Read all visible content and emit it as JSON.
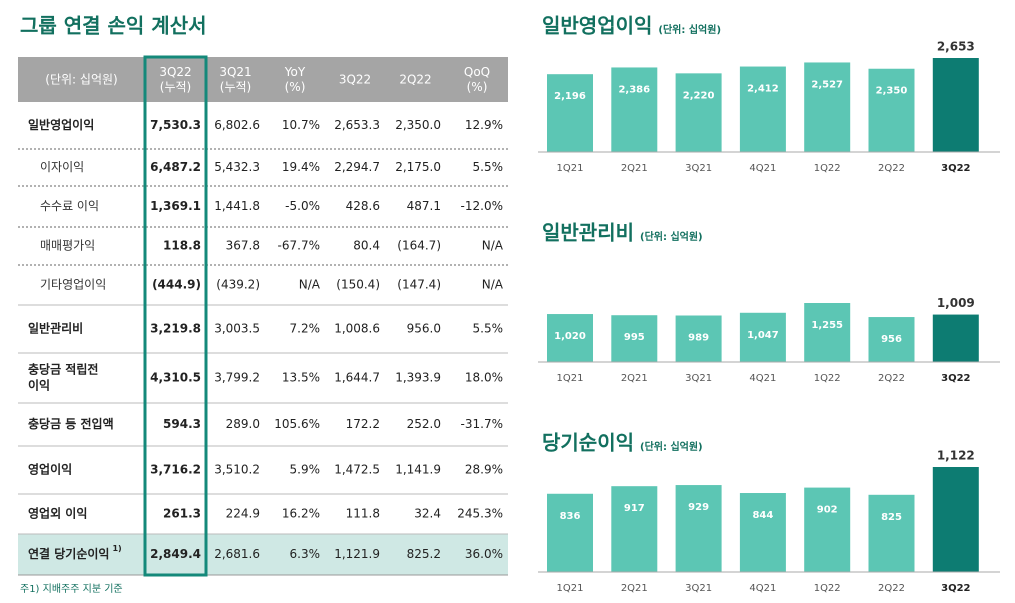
{
  "title": "그룹 연결 손익 계산서",
  "table": {
    "header": [
      [
        "(단위: 십억원)"
      ],
      [
        "3Q22",
        "(누적)"
      ],
      [
        "3Q21",
        "(누적)"
      ],
      [
        "YoY",
        "(%)"
      ],
      [
        "3Q22"
      ],
      [
        "2Q22"
      ],
      [
        "QoQ",
        "(%)"
      ]
    ],
    "rows": [
      {
        "label": "일반영업이익",
        "cells": [
          "7,530.3",
          "6,802.6",
          "10.7%",
          "2,653.3",
          "2,350.0",
          "12.9%"
        ]
      },
      {
        "label": "이자이익",
        "cells": [
          "6,487.2",
          "5,432.3",
          "19.4%",
          "2,294.7",
          "2,175.0",
          "5.5%"
        ]
      },
      {
        "label": "수수료 이익",
        "cells": [
          "1,369.1",
          "1,441.8",
          "-5.0%",
          "428.6",
          "487.1",
          "-12.0%"
        ]
      },
      {
        "label": "매매평가익",
        "cells": [
          "118.8",
          "367.8",
          "-67.7%",
          "80.4",
          "(164.7)",
          "N/A"
        ]
      },
      {
        "label": "기타영업이익",
        "cells": [
          "(444.9)",
          "(439.2)",
          "N/A",
          "(150.4)",
          "(147.4)",
          "N/A"
        ]
      },
      {
        "label": "일반관리비",
        "cells": [
          "3,219.8",
          "3,003.5",
          "7.2%",
          "1,008.6",
          "956.0",
          "5.5%"
        ]
      },
      {
        "label": [
          "충당금 적립전",
          "이익"
        ],
        "cells": [
          "4,310.5",
          "3,799.2",
          "13.5%",
          "1,644.7",
          "1,393.9",
          "18.0%"
        ]
      },
      {
        "label": "충당금 등 전입액",
        "cells": [
          "594.3",
          "289.0",
          "105.6%",
          "172.2",
          "252.0",
          "-31.7%"
        ]
      },
      {
        "label": "영업이익",
        "cells": [
          "3,716.2",
          "3,510.2",
          "5.9%",
          "1,472.5",
          "1,141.9",
          "28.9%"
        ]
      },
      {
        "label": "영업외 이익",
        "cells": [
          "261.3",
          "224.9",
          "16.2%",
          "111.8",
          "32.4",
          "245.3%"
        ]
      },
      {
        "label": "연결 당기순이익",
        "note": "1)",
        "cells": [
          "2,849.4",
          "2,681.6",
          "6.3%",
          "1,121.9",
          "825.2",
          "36.0%"
        ]
      }
    ]
  },
  "footnote": "주1) 지배주주 지분 기준",
  "chart_data": [
    {
      "type": "bar",
      "title": "일반영업이익",
      "subtitle": "(단위: 십억원)",
      "categories": [
        "1Q21",
        "2Q21",
        "3Q21",
        "4Q21",
        "1Q22",
        "2Q22",
        "3Q22"
      ],
      "values": [
        2196,
        2386,
        2220,
        2412,
        2527,
        2350,
        2653
      ],
      "value_labels": [
        "2,196",
        "2,386",
        "2,220",
        "2,412",
        "2,527",
        "2,350",
        "2,653"
      ],
      "colors": [
        "#5cc6b4",
        "#5cc6b4",
        "#5cc6b4",
        "#5cc6b4",
        "#5cc6b4",
        "#5cc6b4",
        "#0d7c72"
      ]
    },
    {
      "type": "bar",
      "title": "일반관리비",
      "subtitle": "(단위: 십억원)",
      "categories": [
        "1Q21",
        "2Q21",
        "3Q21",
        "4Q21",
        "1Q22",
        "2Q22",
        "3Q22"
      ],
      "values": [
        1020,
        995,
        989,
        1047,
        1255,
        956,
        1009
      ],
      "value_labels": [
        "1,020",
        "995",
        "989",
        "1,047",
        "1,255",
        "956",
        "1,009"
      ],
      "colors": [
        "#5cc6b4",
        "#5cc6b4",
        "#5cc6b4",
        "#5cc6b4",
        "#5cc6b4",
        "#5cc6b4",
        "#0d7c72"
      ]
    },
    {
      "type": "bar",
      "title": "당기순이익",
      "subtitle": "(단위: 십억원)",
      "categories": [
        "1Q21",
        "2Q21",
        "3Q21",
        "4Q21",
        "1Q22",
        "2Q22",
        "3Q22"
      ],
      "values": [
        836,
        917,
        929,
        844,
        902,
        825,
        1122
      ],
      "value_labels": [
        "836",
        "917",
        "929",
        "844",
        "902",
        "825",
        "1,122"
      ],
      "colors": [
        "#5cc6b4",
        "#5cc6b4",
        "#5cc6b4",
        "#5cc6b4",
        "#5cc6b4",
        "#5cc6b4",
        "#0d7c72"
      ]
    }
  ]
}
